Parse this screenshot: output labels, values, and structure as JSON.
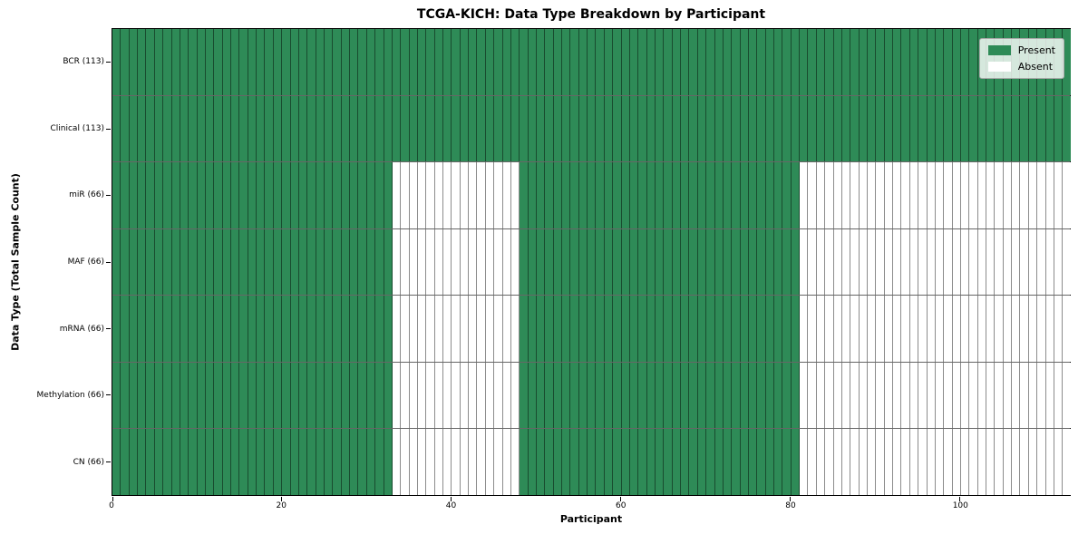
{
  "chart_data": {
    "type": "heatmap",
    "title": "TCGA-KICH: Data Type Breakdown by Participant",
    "xlabel": "Participant",
    "ylabel": "Data Type (Total Sample Count)",
    "x_ticks": [
      0,
      20,
      40,
      60,
      80,
      100
    ],
    "x_range": [
      0,
      113
    ],
    "n_participants": 113,
    "grid": false,
    "legend_position": "upper right",
    "legend": [
      {
        "label": "Present",
        "color": "#2e8b57"
      },
      {
        "label": "Absent",
        "color": "#ffffff"
      }
    ],
    "colors": {
      "present": "#2e8b57",
      "absent": "#ffffff",
      "cell_edge": "rgba(0,0,0,0.45)",
      "row_edge": "rgba(0,0,0,0.6)"
    },
    "rows": [
      {
        "label": "BCR (113)",
        "data_type": "BCR",
        "total_sample_count": 113,
        "present_count": 113,
        "absent_count": 0,
        "present_ranges": [
          [
            0,
            113
          ]
        ]
      },
      {
        "label": "Clinical (113)",
        "data_type": "Clinical",
        "total_sample_count": 113,
        "present_count": 113,
        "absent_count": 0,
        "present_ranges": [
          [
            0,
            113
          ]
        ]
      },
      {
        "label": "miR (66)",
        "data_type": "miR",
        "total_sample_count": 66,
        "present_count": 66,
        "absent_count": 47,
        "present_ranges": [
          [
            0,
            33
          ],
          [
            48,
            81
          ]
        ]
      },
      {
        "label": "MAF (66)",
        "data_type": "MAF",
        "total_sample_count": 66,
        "present_count": 66,
        "absent_count": 47,
        "present_ranges": [
          [
            0,
            33
          ],
          [
            48,
            81
          ]
        ]
      },
      {
        "label": "mRNA (66)",
        "data_type": "mRNA",
        "total_sample_count": 66,
        "present_count": 66,
        "absent_count": 47,
        "present_ranges": [
          [
            0,
            33
          ],
          [
            48,
            81
          ]
        ]
      },
      {
        "label": "Methylation (66)",
        "data_type": "Methylation",
        "total_sample_count": 66,
        "present_count": 66,
        "absent_count": 47,
        "present_ranges": [
          [
            0,
            33
          ],
          [
            48,
            81
          ]
        ]
      },
      {
        "label": "CN (66)",
        "data_type": "CN",
        "total_sample_count": 66,
        "present_count": 66,
        "absent_count": 47,
        "present_ranges": [
          [
            0,
            33
          ],
          [
            48,
            81
          ]
        ]
      }
    ]
  }
}
